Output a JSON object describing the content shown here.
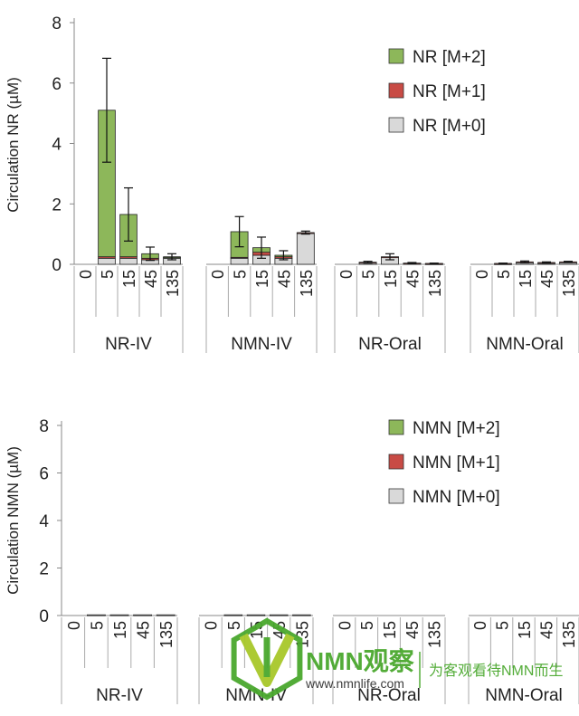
{
  "chart_data": [
    {
      "type": "bar",
      "stacked": true,
      "ylabel": "Circulation NR (µM)",
      "ylim": [
        0,
        8
      ],
      "yticks": [
        0,
        2,
        4,
        6,
        8
      ],
      "timepoints": [
        "0",
        "5",
        "15",
        "45",
        "135"
      ],
      "groups": [
        "NR-IV",
        "NMN-IV",
        "NR-Oral",
        "NMN-Oral"
      ],
      "legend_position": "top-right",
      "series": [
        {
          "name": "NR [M+2]",
          "color": "#8db75a"
        },
        {
          "name": "NR [M+1]",
          "color": "#c84b45"
        },
        {
          "name": "NR [M+0]",
          "color": "#d9d9d9"
        }
      ],
      "values": {
        "NR-IV": {
          "M+0": [
            0,
            0.2,
            0.2,
            0.15,
            0.2
          ],
          "M+1": [
            0,
            0.05,
            0.05,
            0.05,
            0.03
          ],
          "M+2": [
            0,
            4.85,
            1.4,
            0.15,
            0.02
          ]
        },
        "NMN-IV": {
          "M+0": [
            0,
            0.2,
            0.3,
            0.2,
            1.02
          ],
          "M+1": [
            0,
            0.03,
            0.1,
            0.05,
            0.03
          ],
          "M+2": [
            0,
            0.85,
            0.15,
            0.05,
            0
          ]
        },
        "NR-Oral": {
          "M+0": [
            0,
            0.06,
            0.24,
            0.03,
            0.02
          ],
          "M+1": [
            0,
            0.01,
            0.01,
            0.01,
            0.01
          ],
          "M+2": [
            0,
            0,
            0,
            0,
            0
          ]
        },
        "NMN-Oral": {
          "M+0": [
            0,
            0.02,
            0.07,
            0.05,
            0.07
          ],
          "M+1": [
            0,
            0.01,
            0.01,
            0.01,
            0.01
          ],
          "M+2": [
            0,
            0,
            0,
            0,
            0
          ]
        }
      },
      "errors": {
        "NR-IV": [
          0,
          1.72,
          0.88,
          0.22,
          0.1
        ],
        "NMN-IV": [
          0,
          0.5,
          0.35,
          0.15,
          0.05
        ],
        "NR-Oral": [
          0,
          0.03,
          0.1,
          0.02,
          0.01
        ],
        "NMN-Oral": [
          0,
          0.01,
          0.03,
          0.02,
          0.02
        ]
      }
    },
    {
      "type": "bar",
      "stacked": true,
      "ylabel": "Circulation NMN (µM)",
      "ylim": [
        0,
        8
      ],
      "yticks": [
        0,
        2,
        4,
        6,
        8
      ],
      "timepoints": [
        "0",
        "5",
        "15",
        "45",
        "135"
      ],
      "groups": [
        "NR-IV",
        "NMN-IV",
        "NR-Oral",
        "NMN-Oral"
      ],
      "legend_position": "top-right",
      "series": [
        {
          "name": "NMN [M+2]",
          "color": "#8db75a"
        },
        {
          "name": "NMN [M+1]",
          "color": "#c84b45"
        },
        {
          "name": "NMN [M+0]",
          "color": "#d9d9d9"
        }
      ],
      "values": {
        "NR-IV": {
          "M+0": [
            0,
            0.03,
            0.03,
            0.03,
            0.03
          ],
          "M+1": [
            0,
            0,
            0,
            0,
            0
          ],
          "M+2": [
            0,
            0,
            0,
            0,
            0
          ]
        },
        "NMN-IV": {
          "M+0": [
            0,
            0.03,
            0.03,
            0.03,
            0.03
          ],
          "M+1": [
            0,
            0,
            0,
            0,
            0
          ],
          "M+2": [
            0,
            0,
            0,
            0,
            0
          ]
        },
        "NR-Oral": {
          "M+0": [
            0,
            0,
            0,
            0,
            0
          ],
          "M+1": [
            0,
            0,
            0,
            0,
            0
          ],
          "M+2": [
            0,
            0,
            0,
            0,
            0
          ]
        },
        "NMN-Oral": {
          "M+0": [
            0,
            0,
            0,
            0,
            0
          ],
          "M+1": [
            0,
            0,
            0,
            0,
            0
          ],
          "M+2": [
            0,
            0,
            0,
            0,
            0
          ]
        }
      },
      "errors": {
        "NR-IV": [
          0,
          0,
          0,
          0,
          0
        ],
        "NMN-IV": [
          0,
          0,
          0,
          0,
          0
        ],
        "NR-Oral": [
          0,
          0,
          0,
          0,
          0
        ],
        "NMN-Oral": [
          0,
          0,
          0,
          0,
          0
        ]
      }
    }
  ],
  "watermark": {
    "brand": "NMN观察",
    "url": "www.nmnlife.com",
    "slogan": "为客观看待NMN而生",
    "colors": {
      "green": "#4aa82e",
      "lime": "#a8c82a"
    }
  }
}
